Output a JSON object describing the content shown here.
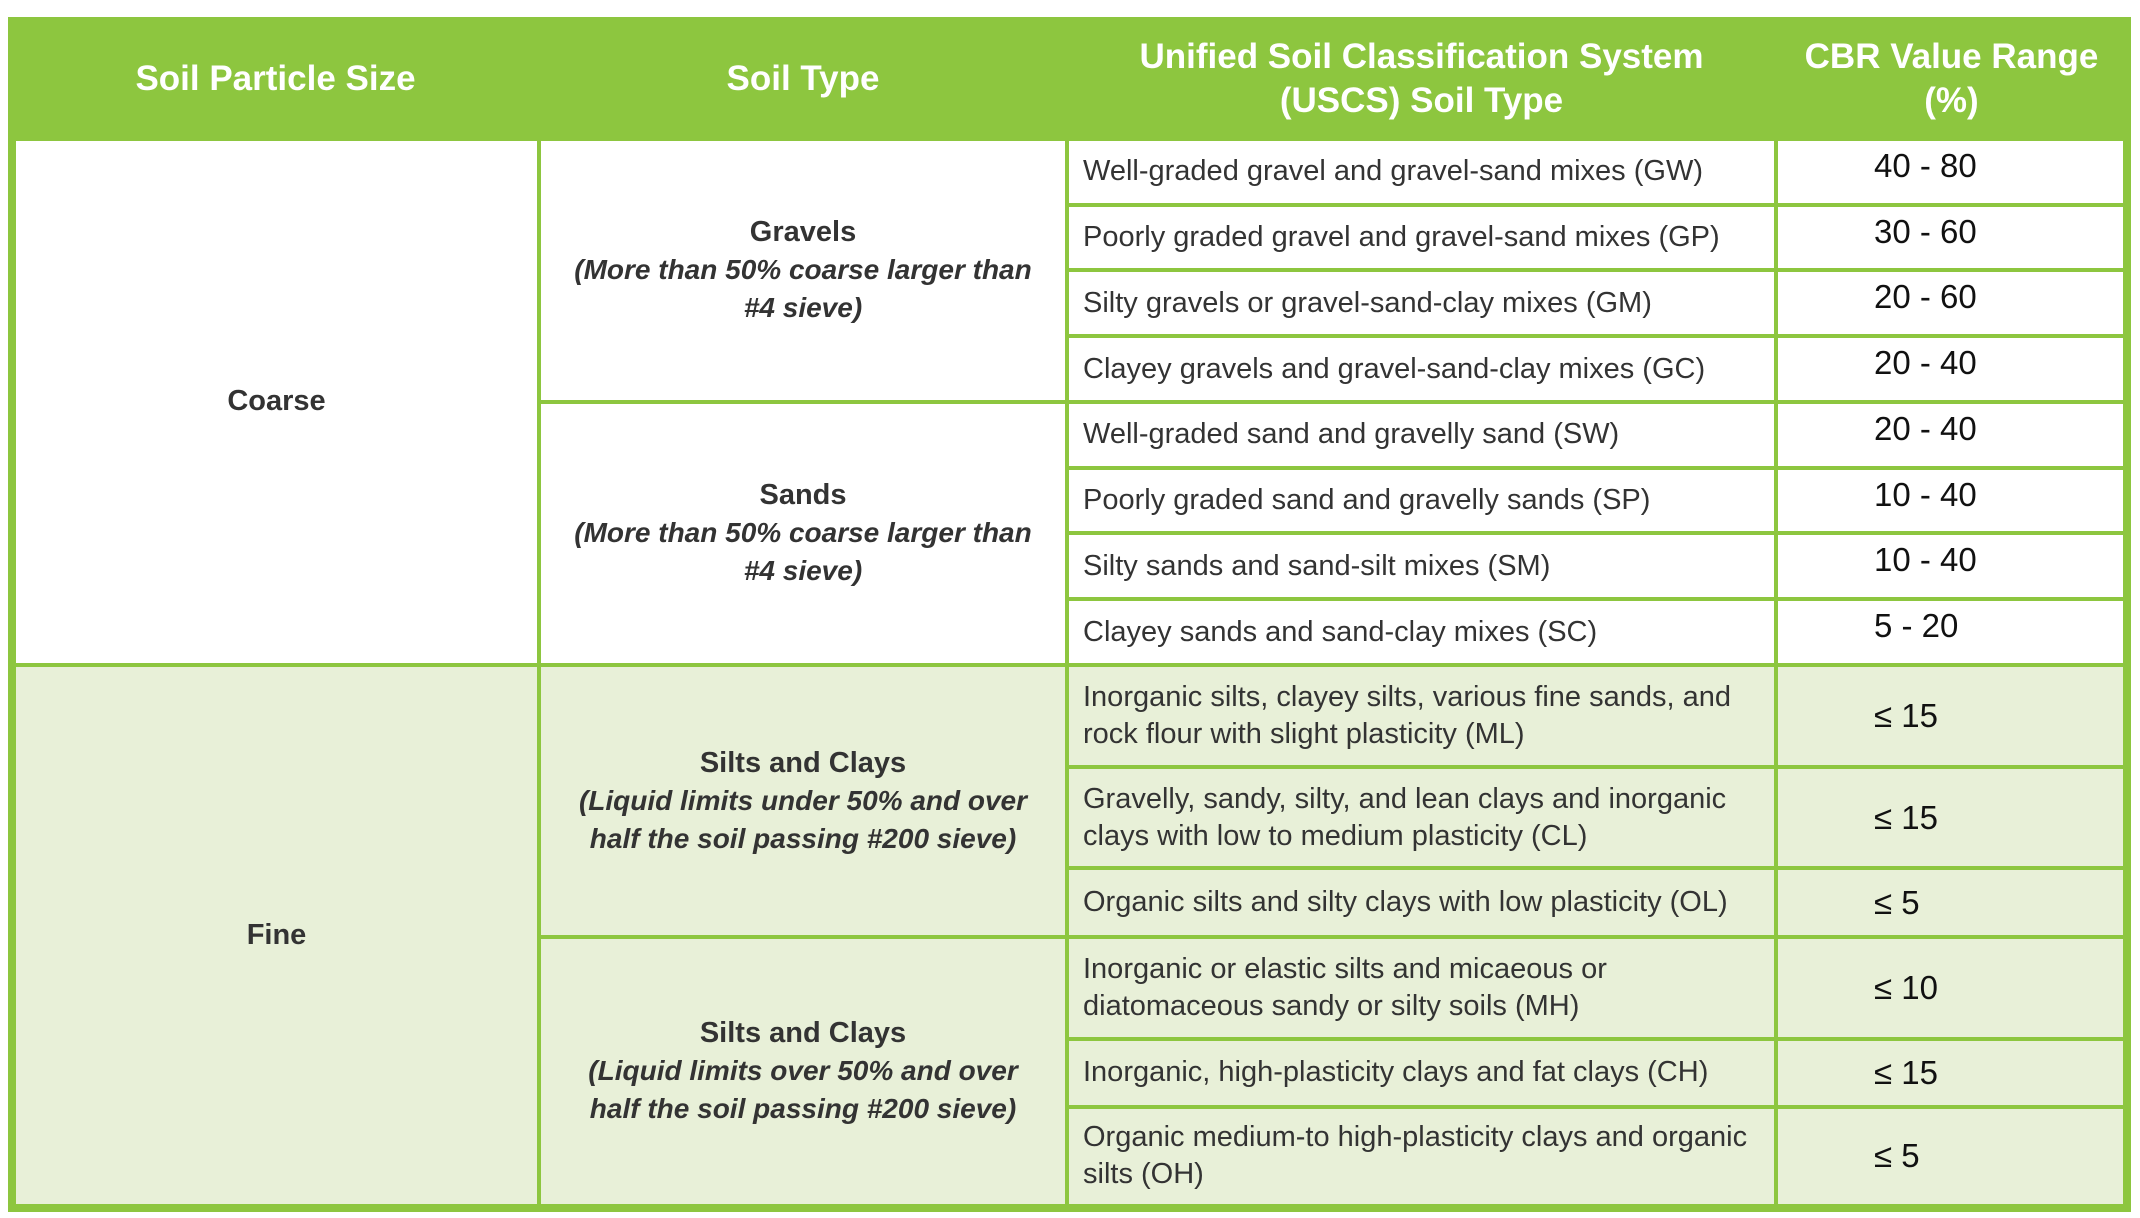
{
  "headers": {
    "particle_size": "Soil Particle Size",
    "soil_type": "Soil Type",
    "uscs_line1": "Unified Soil Classification System",
    "uscs_line2": "(USCS) Soil Type",
    "cbr_line1": "CBR Value Range",
    "cbr_line2": "(%)"
  },
  "groups": [
    {
      "size": "Coarse",
      "types": [
        {
          "name": "Gravels",
          "desc": "(More than 50% coarse larger than #4 sieve)",
          "rows": [
            {
              "uscs": "Well-graded gravel and gravel-sand mixes (GW)",
              "cbr": "40 - 80"
            },
            {
              "uscs": "Poorly graded gravel and gravel-sand mixes (GP)",
              "cbr": "30 - 60"
            },
            {
              "uscs": "Silty gravels or gravel-sand-clay mixes (GM)",
              "cbr": "20 - 60"
            },
            {
              "uscs": "Clayey gravels and gravel-sand-clay mixes (GC)",
              "cbr": "20 - 40"
            }
          ]
        },
        {
          "name": "Sands",
          "desc": "(More than 50% coarse larger than #4 sieve)",
          "rows": [
            {
              "uscs": "Well-graded sand and gravelly sand (SW)",
              "cbr": "20 - 40"
            },
            {
              "uscs": "Poorly graded sand and gravelly sands (SP)",
              "cbr": "10 - 40"
            },
            {
              "uscs": "Silty sands and sand-silt mixes (SM)",
              "cbr": "10 - 40"
            },
            {
              "uscs": "Clayey sands and sand-clay mixes (SC)",
              "cbr": "5 - 20"
            }
          ]
        }
      ]
    },
    {
      "size": "Fine",
      "types": [
        {
          "name": "Silts and Clays",
          "desc": "(Liquid limits under 50% and over half the soil passing #200 sieve)",
          "rows": [
            {
              "uscs": "Inorganic silts, clayey silts, various fine sands, and rock flour with slight plasticity (ML)",
              "cbr": "≤ 15"
            },
            {
              "uscs": "Gravelly, sandy, silty, and lean clays and inorganic clays with low to medium plasticity (CL)",
              "cbr": "≤ 15"
            },
            {
              "uscs": "Organic silts and silty clays with low plasticity (OL)",
              "cbr": "≤ 5"
            }
          ]
        },
        {
          "name": "Silts and Clays",
          "desc": "(Liquid limits over 50% and over half the soil passing #200 sieve)",
          "rows": [
            {
              "uscs": "Inorganic or elastic silts and micaeous or diatomaceous sandy or silty soils (MH)",
              "cbr": "≤ 10"
            },
            {
              "uscs": "Inorganic, high-plasticity clays and fat clays (CH)",
              "cbr": "≤ 15"
            },
            {
              "uscs": "Organic medium-to high-plasticity clays and organic silts (OH)",
              "cbr": "≤ 5"
            }
          ]
        }
      ]
    }
  ],
  "colors": {
    "header_bg": "#8dc63f",
    "border": "#8dc63f",
    "fine_bg": "#e8f0d8",
    "header_text": "#ffffff"
  }
}
